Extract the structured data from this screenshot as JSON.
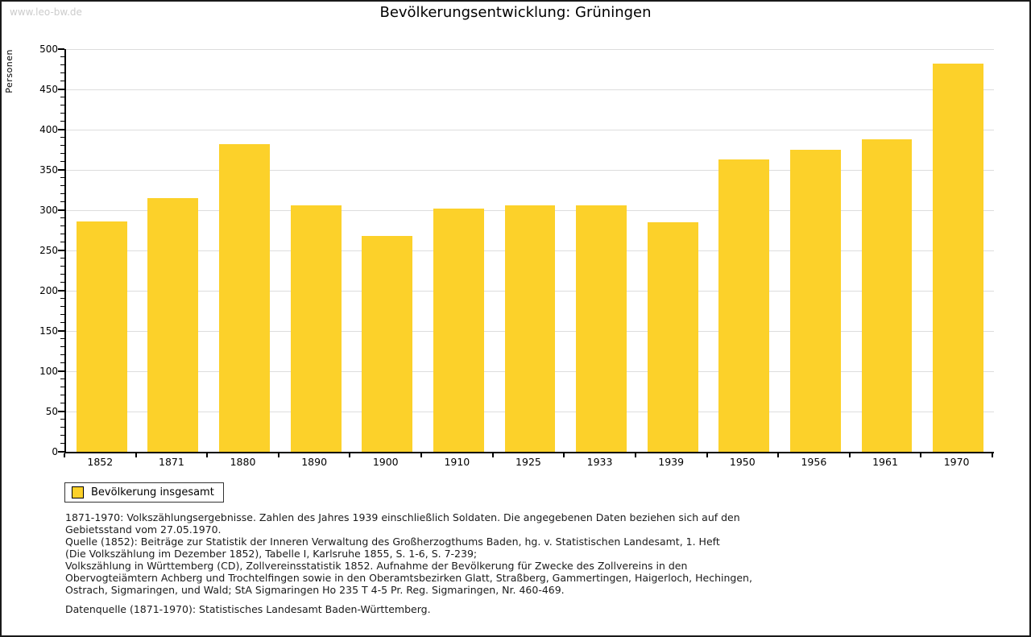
{
  "page": {
    "watermark": "www.leo-bw.de"
  },
  "chart_data": {
    "type": "bar",
    "title": "Bevölkerungsentwicklung: Grüningen",
    "xlabel": "",
    "ylabel": "Personen",
    "categories": [
      "1852",
      "1871",
      "1880",
      "1890",
      "1900",
      "1910",
      "1925",
      "1933",
      "1939",
      "1950",
      "1956",
      "1961",
      "1970"
    ],
    "values": [
      286,
      315,
      382,
      306,
      268,
      302,
      306,
      306,
      285,
      363,
      375,
      388,
      482
    ],
    "ylim": [
      0,
      500
    ],
    "ytick_major_step": 50,
    "ytick_minor_step": 10,
    "grid": true,
    "legend_position": "bottom-left",
    "bar_color": "#FCD12A",
    "gridline_color": "#dddddd"
  },
  "legend": {
    "label": "Bevölkerung insgesamt"
  },
  "footer": {
    "lines": [
      "1871-1970: Volkszählungsergebnisse. Zahlen des Jahres 1939 einschließlich Soldaten. Die angegebenen Daten beziehen sich auf den",
      "Gebietsstand vom 27.05.1970.",
      "Quelle (1852): Beiträge zur Statistik der Inneren Verwaltung des Großherzogthums Baden, hg. v. Statistischen Landesamt, 1. Heft",
      "(Die Volkszählung im Dezember 1852), Tabelle I, Karlsruhe 1855, S. 1-6, S. 7-239;",
      "Volkszählung in Württemberg (CD), Zollvereinsstatistik 1852. Aufnahme der Bevölkerung für Zwecke des Zollvereins in den",
      "Obervogteiämtern Achberg und Trochtelfingen sowie in den Oberamtsbezirken Glatt, Straßberg, Gammertingen, Haigerloch, Hechingen,",
      "Ostrach, Sigmaringen, und Wald; StA Sigmaringen Ho 235 T 4-5 Pr. Reg. Sigmaringen, Nr. 460-469."
    ],
    "datasource": "Datenquelle (1871-1970): Statistisches Landesamt Baden-Württemberg."
  }
}
